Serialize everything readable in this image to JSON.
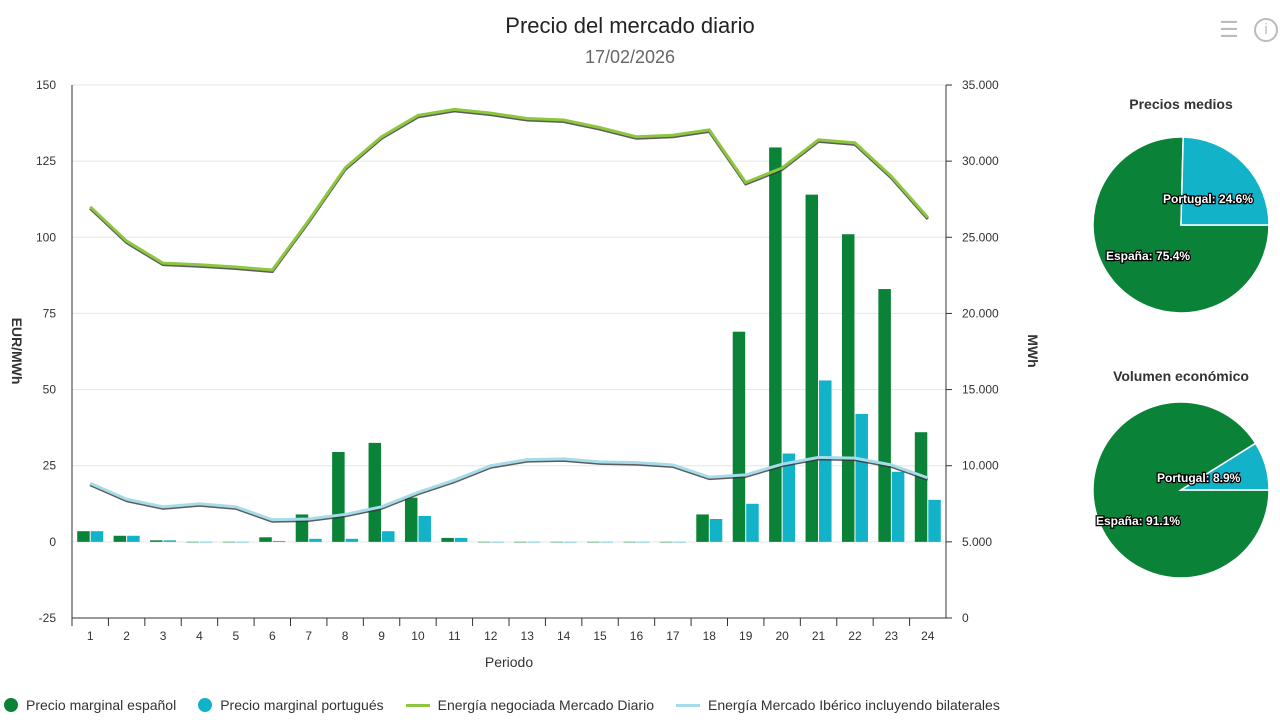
{
  "title": "Precio del mercado diario",
  "subtitle": "17/02/2026",
  "icons": {
    "menu": "menu-icon",
    "info": "info-icon"
  },
  "colors": {
    "spain": "#0a8237",
    "portugal": "#12b2c9",
    "energy_md": "#8dc63f",
    "energy_iberico": "#a6dcea"
  },
  "chart_data": [
    {
      "type": "bar+line",
      "title": "Precio del mercado diario",
      "subtitle": "17/02/2026",
      "xlabel": "Periodo",
      "ylabel": "EUR/MWh",
      "y2label": "MWh",
      "categories": [
        "1",
        "2",
        "3",
        "4",
        "5",
        "6",
        "7",
        "8",
        "9",
        "10",
        "11",
        "12",
        "13",
        "14",
        "15",
        "16",
        "17",
        "18",
        "19",
        "20",
        "21",
        "22",
        "23",
        "24"
      ],
      "ylim": [
        -25,
        150
      ],
      "yticks": [
        "-25",
        "0",
        "25",
        "50",
        "75",
        "100",
        "125",
        "150"
      ],
      "y2lim": [
        0,
        35000
      ],
      "y2ticks": [
        "0",
        "5.000",
        "10.000",
        "15.000",
        "20.000",
        "25.000",
        "30.000",
        "35.000"
      ],
      "grid": true,
      "legend": "bottom",
      "series": [
        {
          "name": "Precio marginal español",
          "type": "bar",
          "axis": "left",
          "values": [
            3.5,
            2,
            0.5,
            0,
            0,
            1.5,
            9,
            29.5,
            32.5,
            14.5,
            1.3,
            0,
            0,
            0,
            0,
            0,
            0,
            9,
            69,
            129.5,
            114,
            101,
            83,
            36
          ]
        },
        {
          "name": "Precio marginal portugués",
          "type": "bar",
          "axis": "left",
          "values": [
            3.5,
            2,
            0.5,
            0,
            0,
            0.3,
            1,
            1,
            3.5,
            8.5,
            1.3,
            0,
            0,
            0,
            0,
            0,
            0,
            7.5,
            12.5,
            29,
            53,
            42,
            23,
            13.8
          ]
        },
        {
          "name": "Energía negociada Mercado Diario",
          "type": "line",
          "axis": "right",
          "values": [
            27000,
            24750,
            23300,
            23200,
            23050,
            22850,
            26100,
            29550,
            31600,
            33000,
            33400,
            33150,
            32800,
            32700,
            32200,
            31600,
            31700,
            32050,
            28600,
            29550,
            31400,
            31200,
            29000,
            26300
          ]
        },
        {
          "name": "Energía Mercado Ibérico incluyendo bilaterales",
          "type": "line",
          "axis": "right",
          "values": [
            8850,
            7800,
            7300,
            7500,
            7300,
            6450,
            6500,
            6800,
            7300,
            8250,
            9050,
            10000,
            10400,
            10450,
            10250,
            10200,
            10050,
            9250,
            9400,
            10100,
            10550,
            10500,
            10050,
            9200
          ]
        }
      ]
    },
    {
      "type": "pie",
      "title": "Precios medios",
      "slices": [
        {
          "name": "España",
          "value": 75.4,
          "label": "España: 75.4%"
        },
        {
          "name": "Portugal",
          "value": 24.6,
          "label": "Portugal: 24.6%"
        }
      ]
    },
    {
      "type": "pie",
      "title": "Volumen económico",
      "slices": [
        {
          "name": "España",
          "value": 91.1,
          "label": "España: 91.1%"
        },
        {
          "name": "Portugal",
          "value": 8.9,
          "label": "Portugal: 8.9%"
        }
      ]
    }
  ]
}
